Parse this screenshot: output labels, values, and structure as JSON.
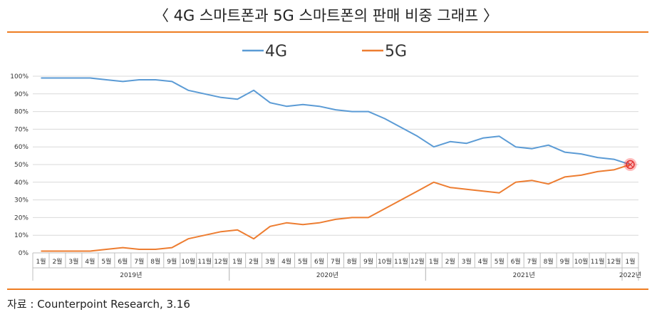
{
  "title": "〈 4G 스마트폰과 5G 스마트폰의 판매 비중 그래프 〉",
  "source": "자료 : Counterpoint Research, 3.16",
  "chart_data": {
    "type": "line",
    "categories": [
      "1월",
      "2월",
      "3월",
      "4월",
      "5월",
      "6월",
      "7월",
      "8월",
      "9월",
      "10월",
      "11월",
      "12월",
      "1월",
      "2월",
      "3월",
      "4월",
      "5월",
      "6월",
      "7월",
      "8월",
      "9월",
      "10월",
      "11월",
      "12월",
      "1월",
      "2월",
      "3월",
      "4월",
      "5월",
      "6월",
      "7월",
      "8월",
      "9월",
      "10월",
      "11월",
      "12월",
      "1월"
    ],
    "years": [
      {
        "label": "2019년",
        "start": 0,
        "end": 11
      },
      {
        "label": "2020년",
        "start": 12,
        "end": 23
      },
      {
        "label": "2021년",
        "start": 24,
        "end": 35
      },
      {
        "label": "2022년",
        "start": 36,
        "end": 36
      }
    ],
    "series": [
      {
        "name": "4G",
        "color": "#5b9bd5",
        "values": [
          99,
          99,
          99,
          99,
          98,
          97,
          98,
          98,
          97,
          92,
          90,
          88,
          87,
          92,
          85,
          83,
          84,
          83,
          81,
          80,
          80,
          76,
          71,
          66,
          60,
          63,
          62,
          65,
          66,
          60,
          59,
          61,
          57,
          56,
          54,
          53,
          50
        ]
      },
      {
        "name": "5G",
        "color": "#ed7d31",
        "values": [
          1,
          1,
          1,
          1,
          2,
          3,
          2,
          2,
          3,
          8,
          10,
          12,
          13,
          8,
          15,
          17,
          16,
          17,
          19,
          20,
          20,
          25,
          30,
          35,
          40,
          37,
          36,
          35,
          34,
          40,
          41,
          39,
          43,
          44,
          46,
          47,
          50
        ]
      }
    ],
    "yticks": [
      "0%",
      "10%",
      "20%",
      "30%",
      "40%",
      "50%",
      "60%",
      "70%",
      "80%",
      "90%",
      "100%"
    ],
    "ylim": [
      0,
      100
    ],
    "grid": true,
    "legend": "top-center",
    "highlight_color": "#ff3b3b"
  }
}
